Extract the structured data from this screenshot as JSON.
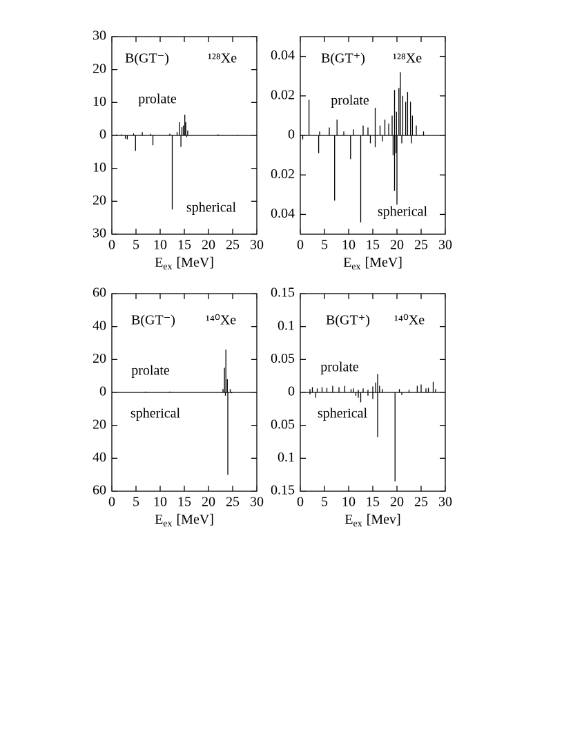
{
  "chart_data": [
    {
      "type": "spike",
      "label": "B(GT⁻)",
      "nucleus": "¹²⁸Xe",
      "xlabel": [
        "E",
        "ex",
        "[MeV]"
      ],
      "xlim": [
        0,
        30
      ],
      "xticks": [
        0,
        5,
        10,
        15,
        20,
        25,
        30
      ],
      "ylim": [
        -30,
        30
      ],
      "yticks": [
        {
          "value": -30,
          "label": "30"
        },
        {
          "value": -20,
          "label": "20"
        },
        {
          "value": -10,
          "label": "10"
        },
        0,
        10,
        20,
        30
      ],
      "series": [
        {
          "name": "prolate",
          "color": "#000000",
          "x": [
            1,
            2,
            4.5,
            6.3,
            8,
            12,
            13.5,
            14,
            14.5,
            14.8,
            15.1,
            15.3,
            15.7,
            22,
            26
          ],
          "values": [
            0.3,
            0.3,
            0.6,
            1,
            0.5,
            0.5,
            1,
            4,
            2.5,
            3,
            6.3,
            4,
            1.5,
            0.3,
            0.2
          ]
        },
        {
          "name": "spherical",
          "color": "#000000",
          "x": [
            2.8,
            3.2,
            4.9,
            8.5,
            12.5,
            14.3,
            15.5
          ],
          "values": [
            -1,
            -1.2,
            -4.7,
            -3,
            -22.5,
            -3.5,
            -0.5
          ]
        }
      ]
    },
    {
      "type": "spike",
      "label": "B(GT⁺)",
      "nucleus": "¹²⁸Xe",
      "xlabel": [
        "E",
        "ex",
        "[MeV]"
      ],
      "xlim": [
        0,
        30
      ],
      "xticks": [
        0,
        5,
        10,
        15,
        20,
        25,
        30
      ],
      "ylim": [
        -0.05,
        0.05
      ],
      "yticks": [
        {
          "value": -0.04,
          "label": "0.04"
        },
        {
          "value": -0.02,
          "label": "0.02"
        },
        0,
        0.02,
        0.04
      ],
      "series": [
        {
          "name": "prolate",
          "color": "#000000",
          "x": [
            1.8,
            4,
            6,
            7.6,
            9,
            11,
            13,
            14,
            15.5,
            16.5,
            17.5,
            18.3,
            19,
            19.5,
            19.9,
            20.4,
            20.7,
            21.2,
            21.8,
            22.2,
            22.8,
            23.2,
            24,
            25.5
          ],
          "values": [
            0.018,
            0.002,
            0.004,
            0.008,
            0.002,
            0.003,
            0.005,
            0.004,
            0.014,
            0.005,
            0.008,
            0.006,
            0.01,
            0.023,
            0.012,
            0.024,
            0.032,
            0.02,
            0.017,
            0.022,
            0.017,
            0.01,
            0.005,
            0.002
          ]
        },
        {
          "name": "spherical",
          "color": "#000000",
          "x": [
            0.5,
            3.8,
            7.1,
            10.4,
            12.5,
            14.5,
            15.5,
            17,
            19.2,
            19.5,
            19.8,
            20,
            21,
            23
          ],
          "values": [
            -0.002,
            -0.009,
            -0.033,
            -0.012,
            -0.044,
            -0.004,
            -0.006,
            -0.003,
            -0.01,
            -0.028,
            -0.009,
            -0.035,
            -0.004,
            -0.004
          ]
        }
      ]
    },
    {
      "type": "spike",
      "label": "B(GT⁻)",
      "nucleus": "¹⁴⁰Xe",
      "xlabel": [
        "E",
        "ex",
        "[MeV]"
      ],
      "xlim": [
        0,
        30
      ],
      "xticks": [
        0,
        5,
        10,
        15,
        20,
        25,
        30
      ],
      "ylim": [
        -60,
        60
      ],
      "yticks": [
        {
          "value": -60,
          "label": "60"
        },
        {
          "value": -40,
          "label": "40"
        },
        {
          "value": -20,
          "label": "20"
        },
        0,
        20,
        40,
        60
      ],
      "series": [
        {
          "name": "prolate",
          "color": "#000000",
          "x": [
            7,
            12,
            23,
            23.3,
            23.6,
            23.9,
            24.5
          ],
          "values": [
            0.5,
            0.5,
            2,
            15,
            26,
            8,
            2
          ]
        },
        {
          "name": "spherical",
          "color": "#000000",
          "x": [
            23.5,
            24,
            24.8
          ],
          "values": [
            -2,
            -50,
            -0.5
          ]
        }
      ]
    },
    {
      "type": "spike",
      "label": "B(GT⁺)",
      "nucleus": "¹⁴⁰Xe",
      "xlabel": [
        "E",
        "ex",
        "[Mev]"
      ],
      "xlim": [
        0,
        30
      ],
      "xticks": [
        0,
        5,
        10,
        15,
        20,
        25,
        30
      ],
      "ylim": [
        -0.15,
        0.15
      ],
      "yticks": [
        {
          "value": -0.15,
          "label": "0.15"
        },
        {
          "value": -0.1,
          "label": "0.1"
        },
        {
          "value": -0.05,
          "label": "0.05"
        },
        0,
        0.05,
        0.1,
        0.15
      ],
      "series": [
        {
          "name": "prolate",
          "color": "#000000",
          "x": [
            2,
            2.5,
            3.5,
            4.5,
            5.5,
            6.7,
            8,
            9.2,
            10.5,
            11,
            12,
            13,
            14,
            15,
            15.6,
            16,
            16.4,
            17,
            20.5,
            22.5,
            24.2,
            25,
            26,
            26.5,
            27.5,
            28
          ],
          "values": [
            0.005,
            0.008,
            0.006,
            0.008,
            0.007,
            0.01,
            0.008,
            0.01,
            0.005,
            0.006,
            0.004,
            0.006,
            0.004,
            0.009,
            0.015,
            0.028,
            0.01,
            0.005,
            0.005,
            0.004,
            0.01,
            0.012,
            0.006,
            0.007,
            0.016,
            0.005
          ]
        },
        {
          "name": "spherical",
          "color": "#000000",
          "x": [
            2,
            3.2,
            11.5,
            12,
            12.5,
            14,
            15,
            16,
            19.6,
            21
          ],
          "values": [
            -0.003,
            -0.008,
            -0.005,
            -0.008,
            -0.015,
            -0.005,
            -0.01,
            -0.068,
            -0.135,
            -0.004
          ]
        }
      ]
    }
  ]
}
